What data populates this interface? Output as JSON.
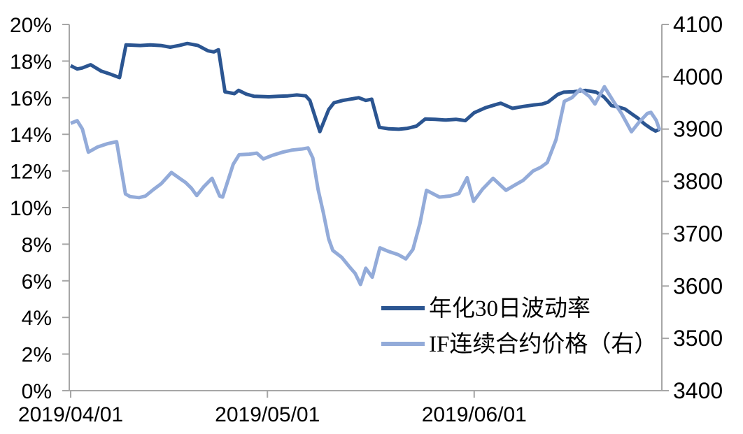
{
  "chart_data": {
    "type": "line",
    "title": "",
    "grid": false,
    "background": "#FFFFFF",
    "x_axis": {
      "ticks": [
        {
          "label": "2019/04/01",
          "pos": 0.0
        },
        {
          "label": "2019/05/01",
          "pos": 0.334
        },
        {
          "label": "2019/06/01",
          "pos": 0.685
        }
      ],
      "range_note": "daily observations from 2019/04/01 to about 2019/06/28; pos is fraction of plot width"
    },
    "y_left": {
      "min": 0,
      "max": 20,
      "tick_step": 2,
      "tick_labels": [
        "20%",
        "18%",
        "16%",
        "14%",
        "12%",
        "10%",
        "8%",
        "6%",
        "4%",
        "2%",
        "0%"
      ]
    },
    "y_right": {
      "min": 3400,
      "max": 4100,
      "tick_step": 100,
      "tick_labels": [
        "4100",
        "4000",
        "3900",
        "3800",
        "3700",
        "3600",
        "3500",
        "3400"
      ]
    },
    "legend_position": "inside-bottom-right",
    "series": [
      {
        "name": "年化30日波动率",
        "axis": "left",
        "unit": "%",
        "color": "#2B5591",
        "points": [
          [
            0.0,
            17.75
          ],
          [
            0.011,
            17.57
          ],
          [
            0.019,
            17.62
          ],
          [
            0.034,
            17.8
          ],
          [
            0.052,
            17.45
          ],
          [
            0.068,
            17.28
          ],
          [
            0.083,
            17.1
          ],
          [
            0.094,
            18.88
          ],
          [
            0.118,
            18.85
          ],
          [
            0.135,
            18.88
          ],
          [
            0.153,
            18.85
          ],
          [
            0.169,
            18.76
          ],
          [
            0.185,
            18.86
          ],
          [
            0.198,
            18.96
          ],
          [
            0.216,
            18.85
          ],
          [
            0.233,
            18.56
          ],
          [
            0.243,
            18.5
          ],
          [
            0.251,
            18.62
          ],
          [
            0.262,
            16.32
          ],
          [
            0.278,
            16.22
          ],
          [
            0.285,
            16.4
          ],
          [
            0.298,
            16.2
          ],
          [
            0.311,
            16.08
          ],
          [
            0.336,
            16.05
          ],
          [
            0.353,
            16.08
          ],
          [
            0.369,
            16.1
          ],
          [
            0.384,
            16.15
          ],
          [
            0.399,
            16.1
          ],
          [
            0.406,
            15.85
          ],
          [
            0.423,
            14.15
          ],
          [
            0.438,
            15.35
          ],
          [
            0.447,
            15.72
          ],
          [
            0.462,
            15.85
          ],
          [
            0.48,
            15.95
          ],
          [
            0.489,
            16.0
          ],
          [
            0.501,
            15.85
          ],
          [
            0.511,
            15.92
          ],
          [
            0.524,
            14.38
          ],
          [
            0.54,
            14.3
          ],
          [
            0.557,
            14.28
          ],
          [
            0.572,
            14.33
          ],
          [
            0.587,
            14.45
          ],
          [
            0.602,
            14.84
          ],
          [
            0.619,
            14.82
          ],
          [
            0.637,
            14.78
          ],
          [
            0.654,
            14.82
          ],
          [
            0.67,
            14.75
          ],
          [
            0.685,
            15.18
          ],
          [
            0.704,
            15.45
          ],
          [
            0.721,
            15.62
          ],
          [
            0.73,
            15.7
          ],
          [
            0.75,
            15.42
          ],
          [
            0.768,
            15.52
          ],
          [
            0.785,
            15.6
          ],
          [
            0.8,
            15.65
          ],
          [
            0.81,
            15.75
          ],
          [
            0.827,
            16.18
          ],
          [
            0.837,
            16.3
          ],
          [
            0.854,
            16.33
          ],
          [
            0.874,
            16.4
          ],
          [
            0.892,
            16.3
          ],
          [
            0.905,
            16.05
          ],
          [
            0.912,
            15.8
          ],
          [
            0.918,
            15.57
          ],
          [
            0.929,
            15.5
          ],
          [
            0.941,
            15.38
          ],
          [
            0.954,
            15.08
          ],
          [
            0.963,
            14.88
          ],
          [
            0.974,
            14.57
          ],
          [
            0.986,
            14.3
          ],
          [
            0.993,
            14.18
          ],
          [
            1.0,
            14.28
          ]
        ]
      },
      {
        "name": "IF连续合约价格（右）",
        "axis": "right",
        "unit": "index points",
        "color": "#93ABD9",
        "points": [
          [
            0.0,
            3911
          ],
          [
            0.011,
            3916
          ],
          [
            0.02,
            3900
          ],
          [
            0.03,
            3856
          ],
          [
            0.046,
            3866
          ],
          [
            0.062,
            3872
          ],
          [
            0.078,
            3876
          ],
          [
            0.093,
            3776
          ],
          [
            0.101,
            3771
          ],
          [
            0.116,
            3769
          ],
          [
            0.127,
            3772
          ],
          [
            0.14,
            3784
          ],
          [
            0.154,
            3796
          ],
          [
            0.171,
            3817
          ],
          [
            0.186,
            3805
          ],
          [
            0.195,
            3798
          ],
          [
            0.205,
            3787
          ],
          [
            0.214,
            3773
          ],
          [
            0.226,
            3790
          ],
          [
            0.24,
            3806
          ],
          [
            0.253,
            3772
          ],
          [
            0.258,
            3770
          ],
          [
            0.276,
            3833
          ],
          [
            0.286,
            3851
          ],
          [
            0.303,
            3852
          ],
          [
            0.316,
            3854
          ],
          [
            0.327,
            3843
          ],
          [
            0.343,
            3850
          ],
          [
            0.36,
            3856
          ],
          [
            0.376,
            3860
          ],
          [
            0.393,
            3862
          ],
          [
            0.403,
            3864
          ],
          [
            0.411,
            3845
          ],
          [
            0.42,
            3785
          ],
          [
            0.429,
            3740
          ],
          [
            0.438,
            3690
          ],
          [
            0.445,
            3668
          ],
          [
            0.46,
            3655
          ],
          [
            0.473,
            3637
          ],
          [
            0.483,
            3624
          ],
          [
            0.492,
            3603
          ],
          [
            0.501,
            3634
          ],
          [
            0.512,
            3617
          ],
          [
            0.525,
            3673
          ],
          [
            0.54,
            3666
          ],
          [
            0.556,
            3660
          ],
          [
            0.569,
            3652
          ],
          [
            0.581,
            3670
          ],
          [
            0.593,
            3720
          ],
          [
            0.604,
            3783
          ],
          [
            0.626,
            3770
          ],
          [
            0.644,
            3772
          ],
          [
            0.659,
            3777
          ],
          [
            0.673,
            3807
          ],
          [
            0.684,
            3762
          ],
          [
            0.699,
            3785
          ],
          [
            0.717,
            3806
          ],
          [
            0.739,
            3783
          ],
          [
            0.754,
            3793
          ],
          [
            0.768,
            3802
          ],
          [
            0.785,
            3820
          ],
          [
            0.798,
            3827
          ],
          [
            0.809,
            3836
          ],
          [
            0.824,
            3880
          ],
          [
            0.838,
            3953
          ],
          [
            0.851,
            3960
          ],
          [
            0.865,
            3976
          ],
          [
            0.881,
            3962
          ],
          [
            0.89,
            3948
          ],
          [
            0.906,
            3981
          ],
          [
            0.922,
            3952
          ],
          [
            0.935,
            3930
          ],
          [
            0.952,
            3895
          ],
          [
            0.964,
            3912
          ],
          [
            0.979,
            3930
          ],
          [
            0.985,
            3932
          ],
          [
            0.994,
            3917
          ],
          [
            1.0,
            3898
          ]
        ]
      }
    ]
  },
  "colors": {
    "axis": "#A6A6A6",
    "text": "#000000",
    "background": "#FFFFFF"
  }
}
